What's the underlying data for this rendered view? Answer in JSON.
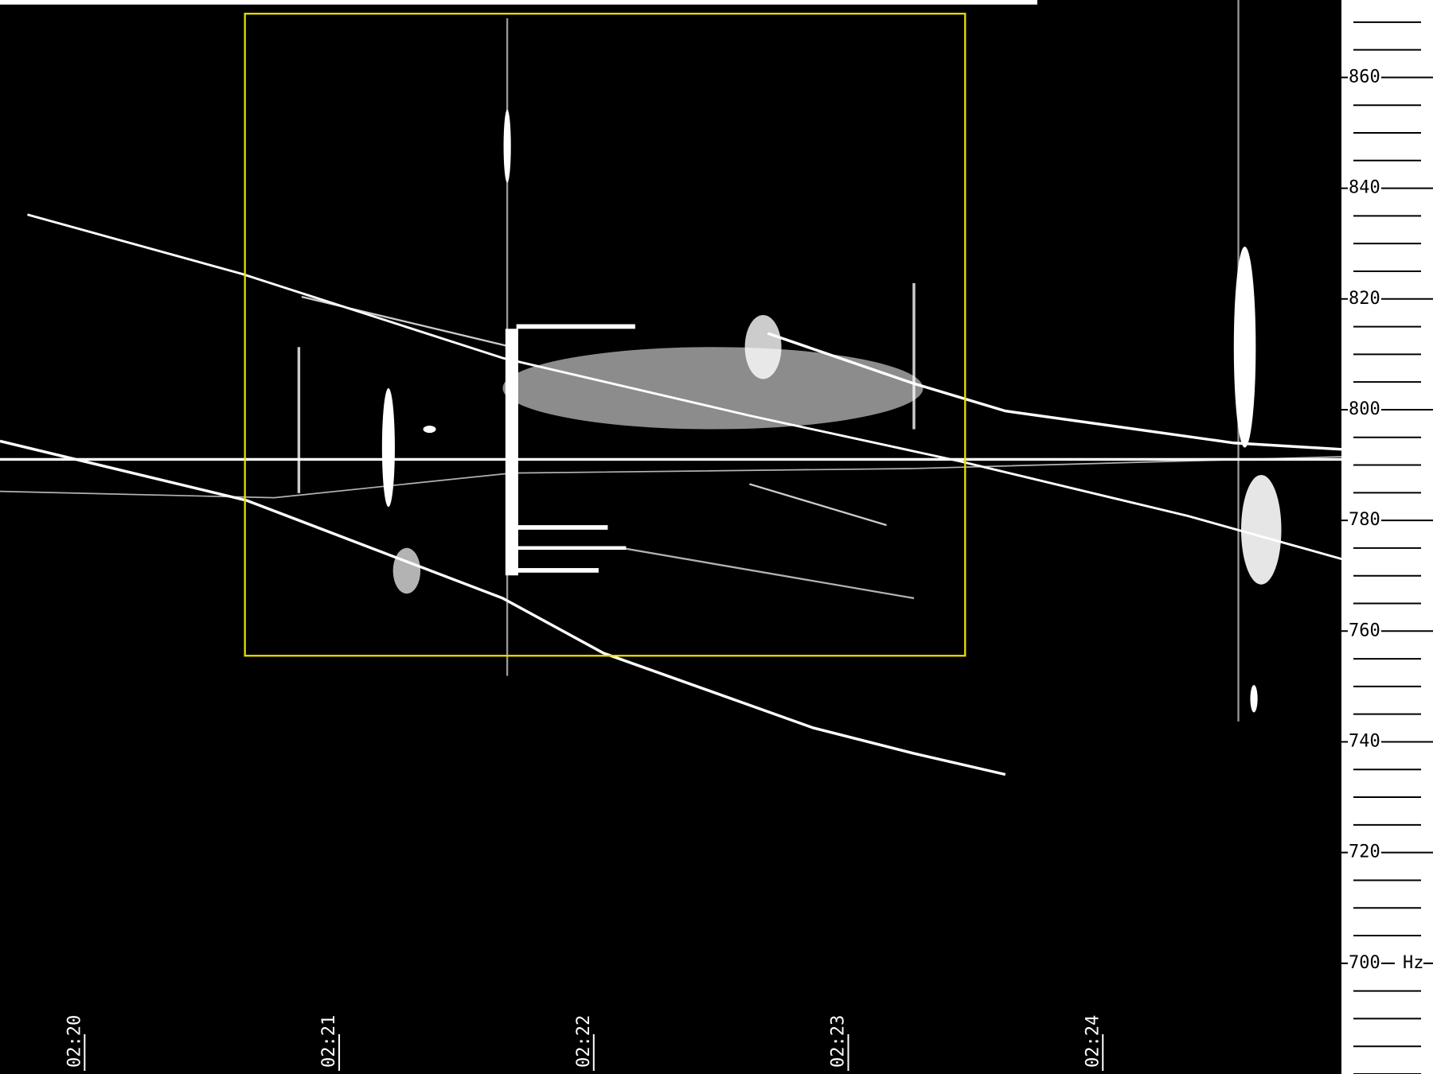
{
  "chart_data": {
    "type": "spectrogram",
    "y_label": "Hz",
    "ylim": [
      680,
      874
    ],
    "yticks": [
      700,
      720,
      740,
      760,
      780,
      800,
      820,
      840,
      860
    ],
    "minor_ytick_step": 5,
    "xlim": [
      -0.32,
      4.95
    ],
    "xticks": [
      {
        "value": 0,
        "label": "02:20"
      },
      {
        "value": 1,
        "label": "02:21"
      },
      {
        "value": 2,
        "label": "02:22"
      },
      {
        "value": 3,
        "label": "02:23"
      },
      {
        "value": 4,
        "label": "02:24"
      }
    ]
  }
}
